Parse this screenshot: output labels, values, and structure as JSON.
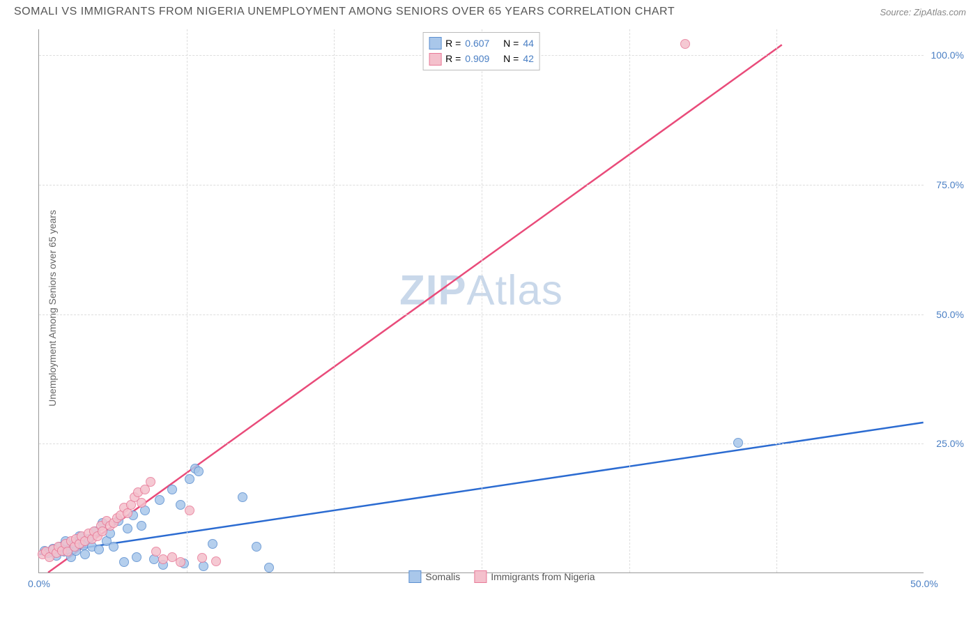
{
  "title": "SOMALI VS IMMIGRANTS FROM NIGERIA UNEMPLOYMENT AMONG SENIORS OVER 65 YEARS CORRELATION CHART",
  "source": "Source: ZipAtlas.com",
  "y_axis_label": "Unemployment Among Seniors over 65 years",
  "watermark_bold": "ZIP",
  "watermark_rest": "Atlas",
  "chart": {
    "type": "scatter-with-trend",
    "xlim": [
      0,
      50
    ],
    "ylim": [
      0,
      105
    ],
    "x_ticks": [
      0,
      50
    ],
    "x_tick_labels": [
      "0.0%",
      "50.0%"
    ],
    "y_ticks": [
      25,
      50,
      75,
      100
    ],
    "y_tick_labels": [
      "25.0%",
      "50.0%",
      "75.0%",
      "100.0%"
    ],
    "x_grid_positions": [
      8.33,
      16.67,
      25,
      33.33,
      41.67
    ],
    "background_color": "#ffffff",
    "grid_color": "#dddddd",
    "axis_color": "#999999",
    "tick_label_color": "#4a7fc4",
    "marker_radius": 7,
    "marker_stroke_width": 1,
    "series": [
      {
        "name": "Somalis",
        "r_value": "0.607",
        "n_value": "44",
        "fill_color": "#a9c7ea",
        "stroke_color": "#5b8fd0",
        "trend_color": "#2b6bd1",
        "trend_width": 2.5,
        "trend_start": [
          0,
          3.5
        ],
        "trend_end": [
          50,
          29
        ],
        "points": [
          [
            0.3,
            4.2
          ],
          [
            0.5,
            3.8
          ],
          [
            0.8,
            4.6
          ],
          [
            1.0,
            3.2
          ],
          [
            1.2,
            5.0
          ],
          [
            1.4,
            4.0
          ],
          [
            1.5,
            6.0
          ],
          [
            1.7,
            4.5
          ],
          [
            1.8,
            3.0
          ],
          [
            2.0,
            5.5
          ],
          [
            2.1,
            4.2
          ],
          [
            2.3,
            7.0
          ],
          [
            2.5,
            5.2
          ],
          [
            2.6,
            3.5
          ],
          [
            2.8,
            6.5
          ],
          [
            3.0,
            5.0
          ],
          [
            3.2,
            8.0
          ],
          [
            3.4,
            4.5
          ],
          [
            3.6,
            9.5
          ],
          [
            3.8,
            6.0
          ],
          [
            4.0,
            7.5
          ],
          [
            4.2,
            5.0
          ],
          [
            4.5,
            10.0
          ],
          [
            4.8,
            2.0
          ],
          [
            5.0,
            8.5
          ],
          [
            5.3,
            11.0
          ],
          [
            5.5,
            3.0
          ],
          [
            5.8,
            9.0
          ],
          [
            6.0,
            12.0
          ],
          [
            6.5,
            2.5
          ],
          [
            6.8,
            14.0
          ],
          [
            7.0,
            1.5
          ],
          [
            7.5,
            16.0
          ],
          [
            8.0,
            13.0
          ],
          [
            8.2,
            1.8
          ],
          [
            8.5,
            18.0
          ],
          [
            8.8,
            20.0
          ],
          [
            9.0,
            19.5
          ],
          [
            9.3,
            1.2
          ],
          [
            9.8,
            5.5
          ],
          [
            11.5,
            14.5
          ],
          [
            12.3,
            5.0
          ],
          [
            13.0,
            1.0
          ],
          [
            39.5,
            25.0
          ]
        ]
      },
      {
        "name": "Immigrants from Nigeria",
        "r_value": "0.909",
        "n_value": "42",
        "fill_color": "#f4c0cc",
        "stroke_color": "#e87a98",
        "trend_color": "#e94b7a",
        "trend_width": 2.5,
        "trend_start": [
          0.5,
          0
        ],
        "trend_end": [
          42,
          102
        ],
        "points": [
          [
            0.2,
            3.5
          ],
          [
            0.4,
            4.0
          ],
          [
            0.6,
            3.0
          ],
          [
            0.8,
            4.5
          ],
          [
            1.0,
            3.8
          ],
          [
            1.1,
            5.0
          ],
          [
            1.3,
            4.2
          ],
          [
            1.5,
            5.5
          ],
          [
            1.6,
            4.0
          ],
          [
            1.8,
            6.0
          ],
          [
            2.0,
            5.0
          ],
          [
            2.1,
            6.5
          ],
          [
            2.3,
            5.5
          ],
          [
            2.4,
            7.0
          ],
          [
            2.6,
            6.0
          ],
          [
            2.8,
            7.5
          ],
          [
            3.0,
            6.5
          ],
          [
            3.1,
            8.0
          ],
          [
            3.3,
            7.0
          ],
          [
            3.5,
            9.0
          ],
          [
            3.6,
            8.0
          ],
          [
            3.8,
            10.0
          ],
          [
            4.0,
            9.0
          ],
          [
            4.2,
            9.5
          ],
          [
            4.4,
            10.5
          ],
          [
            4.6,
            11.0
          ],
          [
            4.8,
            12.5
          ],
          [
            5.0,
            11.5
          ],
          [
            5.2,
            13.0
          ],
          [
            5.4,
            14.5
          ],
          [
            5.6,
            15.5
          ],
          [
            5.8,
            13.5
          ],
          [
            6.0,
            16.0
          ],
          [
            6.3,
            17.5
          ],
          [
            6.6,
            4.0
          ],
          [
            7.0,
            2.5
          ],
          [
            7.5,
            3.0
          ],
          [
            8.0,
            2.0
          ],
          [
            8.5,
            12.0
          ],
          [
            9.2,
            2.8
          ],
          [
            10.0,
            2.2
          ],
          [
            36.5,
            102.0
          ]
        ]
      }
    ],
    "legend_top": {
      "r_label": "R =",
      "n_label": "N ="
    },
    "legend_bottom_labels": [
      "Somalis",
      "Immigrants from Nigeria"
    ]
  }
}
